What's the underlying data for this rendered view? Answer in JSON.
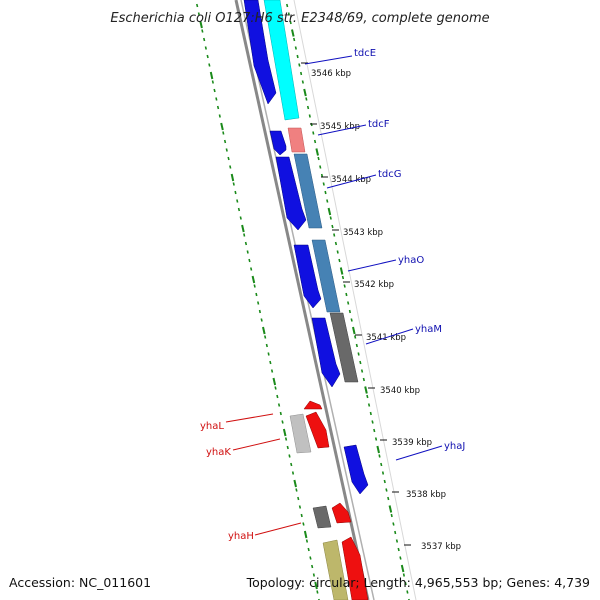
{
  "title": "Escherichia coli O127:H6 str. E2348/69, complete genome",
  "accession": "Accession: NC_011601",
  "topology": "Topology: circular; Length: 4,965,553 bp; Genes: 4,739",
  "kbp_ticks": [
    "3546 kbp",
    "3545 kbp",
    "3544 kbp",
    "3543 kbp",
    "3542 kbp",
    "3541 kbp",
    "3540 kbp",
    "3539 kbp",
    "3538 kbp",
    "3537 kbp"
  ],
  "genes_forward": [
    "tdcE",
    "tdcF",
    "tdcG",
    "yhaO",
    "yhaM",
    "yhaJ"
  ],
  "genes_reverse": [
    "yhaL",
    "yhaK",
    "yhaH"
  ],
  "colors": {
    "forward_strand": "#1010e0",
    "reverse_strand": "#ee1010",
    "forward_label": "#1010b0",
    "reverse_label": "#d01010",
    "gc_ticks": "#1a8a1a",
    "backbone": "#808080",
    "tdcE_bar": "#00ffff",
    "tdcF_bar": "#f08080",
    "tdcG_bar": "#4682b4",
    "yhaO_bar": "#4682b4",
    "yhaM_bar": "#696969",
    "yhaL_bar": "#c0c0c0",
    "yhaH_bar": "#696969",
    "tan_bar": "#bdb76b"
  }
}
